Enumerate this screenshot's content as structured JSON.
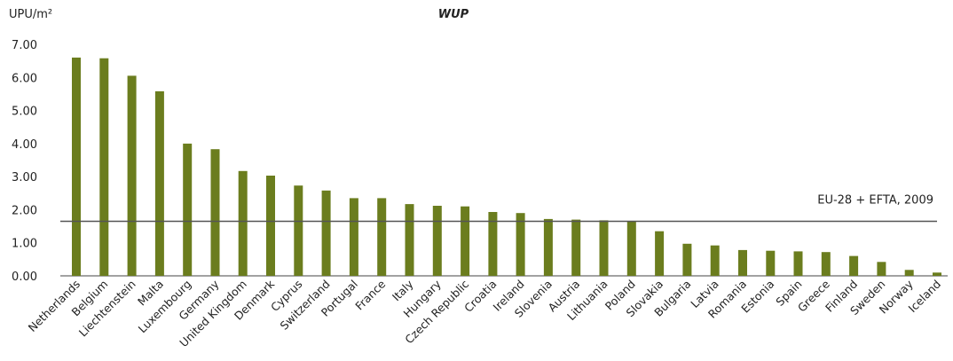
{
  "chart_data": {
    "type": "bar",
    "title": "WUP",
    "ylabel": "UPU/m²",
    "ylim": [
      0,
      7
    ],
    "yticks": [
      "0.00",
      "1.00",
      "2.00",
      "3.00",
      "4.00",
      "5.00",
      "6.00",
      "7.00"
    ],
    "grid": false,
    "bar_color": "#6b7d1e",
    "categories": [
      "Netherlands",
      "Belgium",
      "Liechtenstein",
      "Malta",
      "Luxembourg",
      "Germany",
      "United Kingdom",
      "Denmark",
      "Cyprus",
      "Switzerland",
      "Portugal",
      "France",
      "Italy",
      "Hungary",
      "Czech Republic",
      "Croatia",
      "Ireland",
      "Slovenia",
      "Austria",
      "Lithuania",
      "Poland",
      "Slovakia",
      "Bulgaria",
      "Latvia",
      "Romania",
      "Estonia",
      "Spain",
      "Greece",
      "Finland",
      "Sweden",
      "Norway",
      "Iceland"
    ],
    "values": [
      6.6,
      6.58,
      6.05,
      5.58,
      4.0,
      3.83,
      3.17,
      3.03,
      2.73,
      2.58,
      2.35,
      2.35,
      2.17,
      2.12,
      2.1,
      1.93,
      1.9,
      1.72,
      1.7,
      1.68,
      1.65,
      1.35,
      0.97,
      0.92,
      0.78,
      0.76,
      0.74,
      0.72,
      0.6,
      0.42,
      0.18,
      0.1
    ],
    "reference_line": {
      "label": "EU-28 + EFTA, 2009",
      "value": 1.65,
      "color": "#555555"
    }
  }
}
